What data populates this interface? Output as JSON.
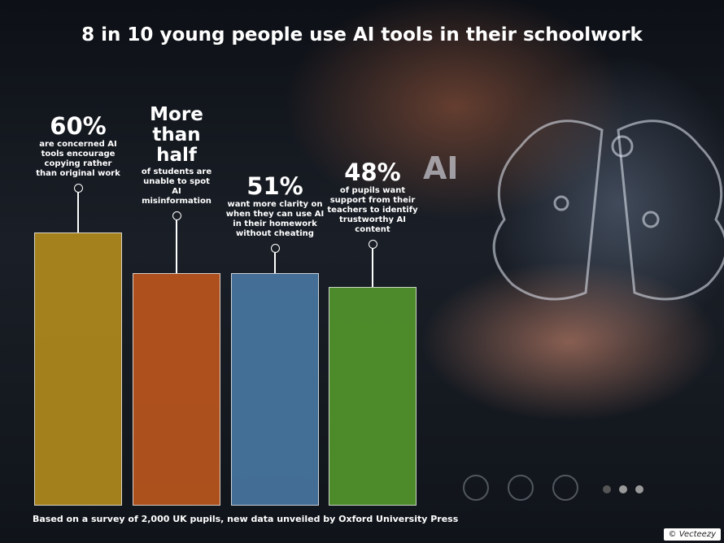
{
  "chart_data": {
    "type": "bar",
    "title": "8 in 10 young people use AI tools in their schoolwork",
    "subtitle": "Based on a survey of 2,000 UK pupils, new data unveiled by Oxford University Press",
    "watermark": "Vecteezy",
    "categories": [
      "are concerned AI tools encourage copying rather than original work",
      "of students are unable to spot AI misinformation",
      "want more clarity on when they can use AI in their homework without cheating",
      "of pupils want support from their teachers to identify trustworthy AI content"
    ],
    "values": [
      60,
      51,
      51,
      48
    ],
    "value_labels": [
      "60%",
      "More than half",
      "51%",
      "48%"
    ],
    "colors": [
      "#b88f1c",
      "#c2581d",
      "#4a7aa6",
      "#559a2c"
    ]
  }
}
